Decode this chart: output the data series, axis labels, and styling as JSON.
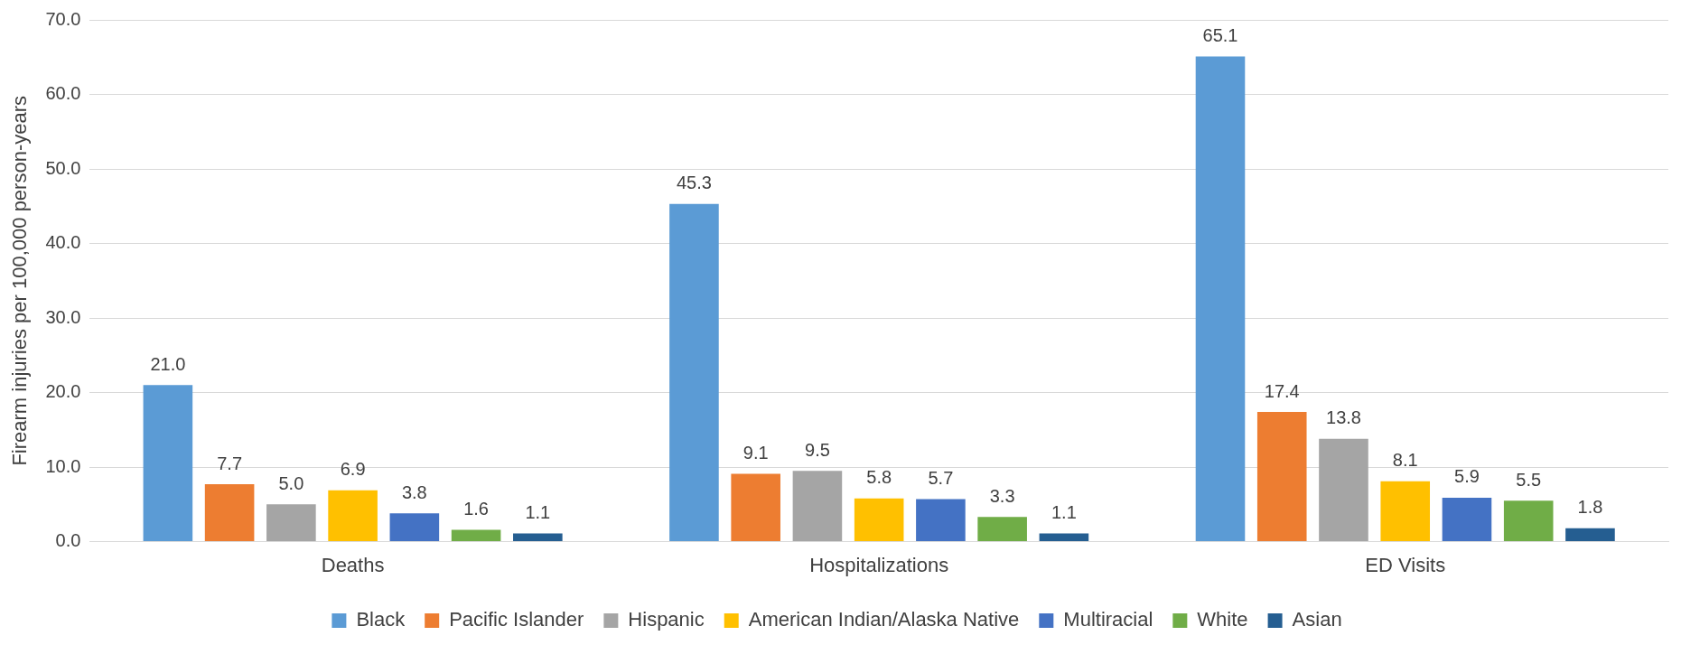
{
  "chart_data": {
    "type": "bar",
    "ylabel": "Firearm injuries per 100,000 person-years",
    "categories": [
      "Deaths",
      "Hospitalizations",
      "ED Visits"
    ],
    "series": [
      {
        "name": "Black",
        "color": "#5b9bd5",
        "values": [
          21.0,
          45.3,
          65.1
        ],
        "value_labels": [
          "21.0",
          "45.3",
          "65.1"
        ]
      },
      {
        "name": "Pacific Islander",
        "color": "#ed7d31",
        "values": [
          7.7,
          9.1,
          17.4
        ],
        "value_labels": [
          "7.7",
          "9.1",
          "17.4"
        ]
      },
      {
        "name": "Hispanic",
        "color": "#a5a5a5",
        "values": [
          5.0,
          9.5,
          13.8
        ],
        "value_labels": [
          "5.0",
          "9.5",
          "13.8"
        ]
      },
      {
        "name": "American Indian/Alaska Native",
        "color": "#ffc000",
        "values": [
          6.9,
          5.8,
          8.1
        ],
        "value_labels": [
          "6.9",
          "5.8",
          "8.1"
        ]
      },
      {
        "name": "Multiracial",
        "color": "#4472c4",
        "values": [
          3.8,
          5.7,
          5.9
        ],
        "value_labels": [
          "3.8",
          "5.7",
          "5.9"
        ]
      },
      {
        "name": "White",
        "color": "#70ad47",
        "values": [
          1.6,
          3.3,
          5.5
        ],
        "value_labels": [
          "1.6",
          "3.3",
          "5.5"
        ]
      },
      {
        "name": "Asian",
        "color": "#255e91",
        "values": [
          1.1,
          1.1,
          1.8
        ],
        "value_labels": [
          "1.1",
          "1.1",
          "1.8"
        ]
      }
    ],
    "ylim": [
      0,
      70
    ],
    "yticks": [
      {
        "value": 0,
        "label": "0.0"
      },
      {
        "value": 10,
        "label": "10.0"
      },
      {
        "value": 20,
        "label": "20.0"
      },
      {
        "value": 30,
        "label": "30.0"
      },
      {
        "value": 40,
        "label": "40.0"
      },
      {
        "value": 50,
        "label": "50.0"
      },
      {
        "value": 60,
        "label": "60.0"
      },
      {
        "value": 70,
        "label": "70.0"
      }
    ],
    "grid": "y",
    "legend": "bottom"
  }
}
